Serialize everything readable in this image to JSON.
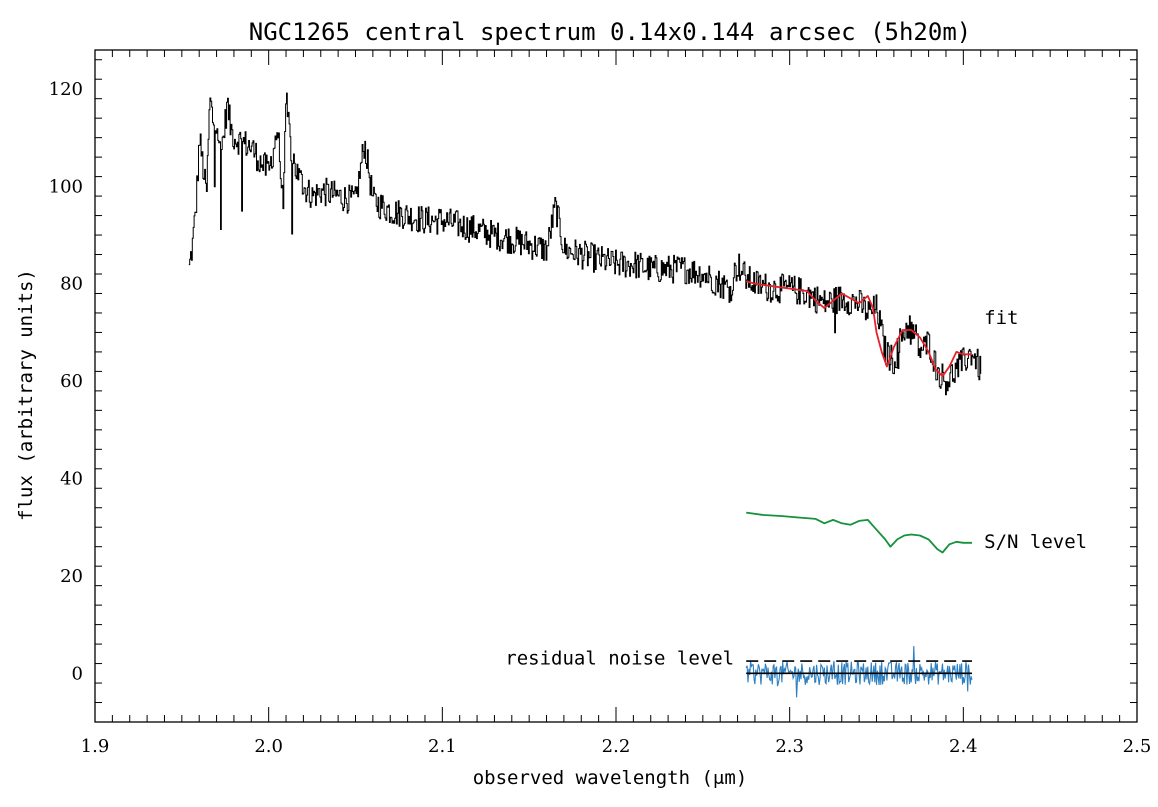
{
  "chart_data": {
    "type": "line",
    "title": "NGC1265 central spectrum 0.14x0.144 arcsec (5h20m)",
    "xlabel": "observed wavelength (μm)",
    "ylabel": "flux (arbitrary units)",
    "xlim": [
      1.9,
      2.5
    ],
    "ylim": [
      -10,
      128
    ],
    "x_ticks": [
      1.9,
      2.0,
      2.1,
      2.2,
      2.3,
      2.4,
      2.5
    ],
    "x_tick_labels": [
      "1.9",
      "2.0",
      "2.1",
      "2.2",
      "2.3",
      "2.4",
      "2.5"
    ],
    "y_ticks": [
      0,
      20,
      40,
      60,
      80,
      100,
      120
    ],
    "y_tick_labels": [
      "0",
      "20",
      "40",
      "60",
      "80",
      "100",
      "120"
    ],
    "grid": false,
    "colors": {
      "spectrum": "#000000",
      "fit": "#e8202a",
      "sn": "#14923c",
      "residual": "#2e7fc0",
      "zero": "#000000",
      "noise": "#000000"
    },
    "series": [
      {
        "name": "",
        "role": "spectrum",
        "x": [
          1.954,
          1.956,
          1.958,
          1.96,
          1.962,
          1.964,
          1.966,
          1.968,
          1.97,
          1.972,
          1.974,
          1.976,
          1.978,
          1.98,
          1.985,
          1.99,
          1.995,
          2.0,
          2.005,
          2.008,
          2.01,
          2.013,
          2.016,
          2.02,
          2.025,
          2.03,
          2.04,
          2.05,
          2.055,
          2.06,
          2.065,
          2.07,
          2.08,
          2.09,
          2.1,
          2.11,
          2.12,
          2.13,
          2.14,
          2.15,
          2.16,
          2.165,
          2.17,
          2.18,
          2.19,
          2.2,
          2.21,
          2.22,
          2.23,
          2.24,
          2.25,
          2.26,
          2.265,
          2.27,
          2.275,
          2.28,
          2.29,
          2.3,
          2.31,
          2.32,
          2.33,
          2.34,
          2.345,
          2.35,
          2.355,
          2.36,
          2.365,
          2.37,
          2.375,
          2.38,
          2.385,
          2.39,
          2.395,
          2.4,
          2.405,
          2.41
        ],
        "y": [
          83,
          88,
          96,
          110,
          104,
          98,
          118,
          113,
          114,
          106,
          111,
          117,
          112,
          110,
          109,
          108,
          105,
          103,
          112,
          96,
          117,
          107,
          103,
          100,
          98,
          99,
          98,
          97,
          109,
          97,
          96,
          95,
          94,
          93,
          93,
          92,
          91,
          90,
          89,
          88,
          87,
          96,
          87,
          86,
          85,
          84,
          84,
          83,
          83,
          83,
          82,
          80,
          79,
          84,
          81,
          80,
          79,
          79,
          78,
          76,
          77,
          76,
          74,
          75,
          66,
          64,
          70,
          72,
          66,
          68,
          62,
          60,
          62,
          64,
          66,
          62
        ],
        "noise_amplitude": 3.0
      },
      {
        "name": "fit",
        "role": "fit",
        "x": [
          2.275,
          2.28,
          2.29,
          2.3,
          2.31,
          2.315,
          2.32,
          2.325,
          2.33,
          2.335,
          2.34,
          2.345,
          2.348,
          2.35,
          2.353,
          2.356,
          2.36,
          2.365,
          2.37,
          2.375,
          2.38,
          2.384,
          2.388,
          2.392,
          2.396,
          2.4,
          2.405
        ],
        "y": [
          80.5,
          80,
          79.5,
          79,
          78.5,
          76.5,
          75,
          76.5,
          78,
          77,
          76,
          77.5,
          75,
          70,
          66,
          63,
          67,
          70.5,
          70.5,
          69,
          66,
          62.5,
          61,
          63,
          66,
          65.5,
          65.5
        ]
      },
      {
        "name": "S/N level",
        "role": "sn",
        "x": [
          2.275,
          2.285,
          2.295,
          2.305,
          2.315,
          2.32,
          2.325,
          2.33,
          2.335,
          2.34,
          2.345,
          2.35,
          2.355,
          2.358,
          2.362,
          2.366,
          2.37,
          2.375,
          2.38,
          2.385,
          2.388,
          2.392,
          2.396,
          2.4,
          2.405
        ],
        "y": [
          33,
          32.5,
          32.3,
          32,
          31.7,
          30.8,
          31.5,
          30.8,
          30.5,
          31.3,
          31.5,
          29.5,
          27.5,
          26,
          27.5,
          28.3,
          28.5,
          28.3,
          27.5,
          25.5,
          24.8,
          26.5,
          27,
          26.8,
          26.8
        ]
      },
      {
        "name": "residual noise level",
        "role": "residual",
        "x_start": 2.275,
        "x_end": 2.405,
        "points": 260,
        "amplitude": 2.4
      },
      {
        "name": "",
        "role": "noise",
        "x": [
          2.275,
          2.405
        ],
        "y": [
          2.5,
          2.5
        ],
        "dashed": true
      },
      {
        "name": "",
        "role": "zero",
        "x": [
          2.275,
          2.405
        ],
        "y": [
          0,
          0
        ]
      }
    ],
    "annotations": [
      {
        "text": "fit",
        "x": 2.412,
        "y": 73,
        "anchor": "start"
      },
      {
        "text": "S/N level",
        "x": 2.412,
        "y": 27,
        "anchor": "start"
      },
      {
        "text": "residual noise level",
        "x": 2.268,
        "y": 3,
        "anchor": "end"
      }
    ]
  }
}
